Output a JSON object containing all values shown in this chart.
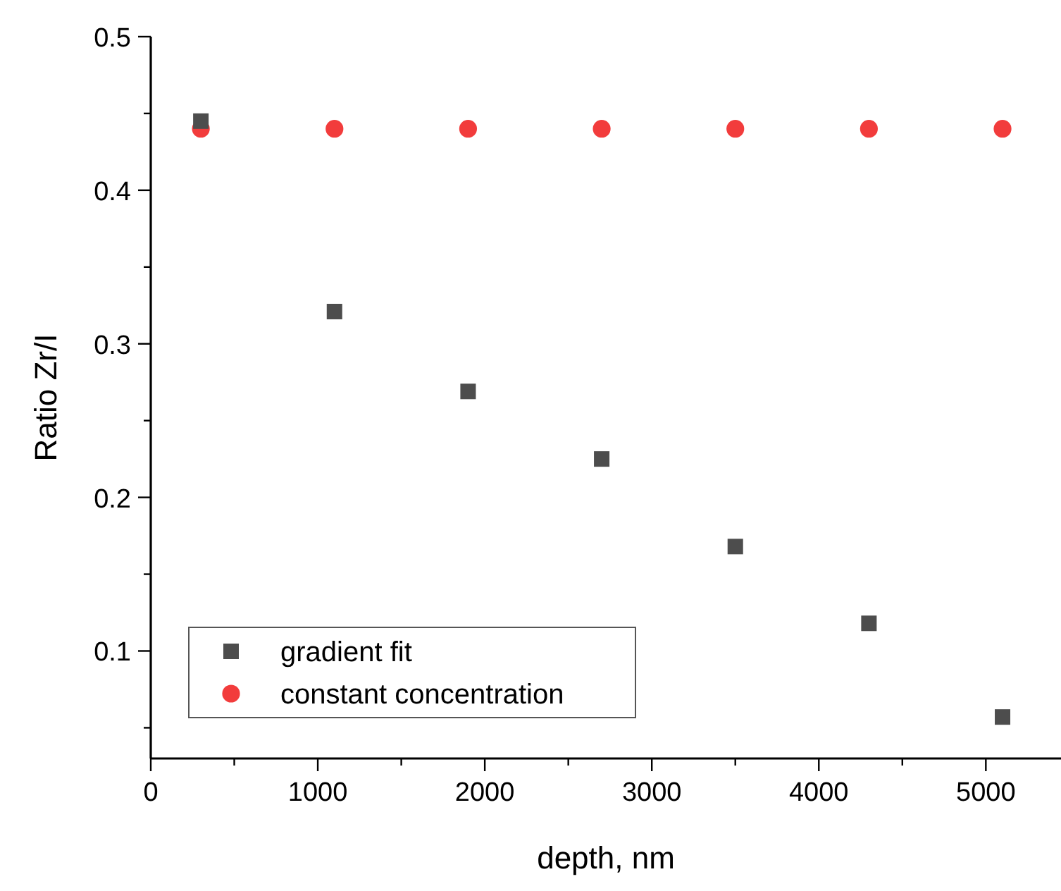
{
  "chart_data": {
    "type": "scatter",
    "xlabel": "depth, nm",
    "ylabel": "Ratio Zr/I",
    "x": [
      300,
      1100,
      1900,
      2700,
      3500,
      4300,
      5100
    ],
    "series": [
      {
        "name": "gradient fit",
        "color": "#4d4d4d",
        "marker": "square",
        "values": [
          0.445,
          0.321,
          0.269,
          0.225,
          0.168,
          0.118,
          0.057
        ]
      },
      {
        "name": "constant concentration",
        "color": "#f23c3c",
        "marker": "circle",
        "values": [
          0.44,
          0.44,
          0.44,
          0.44,
          0.44,
          0.44,
          0.44
        ]
      }
    ],
    "xlim": [
      0,
      5450
    ],
    "ylim": [
      0.03,
      0.5
    ],
    "xticks": [
      0,
      {
        "value": 500,
        "label": null
      },
      1000,
      {
        "value": 1500,
        "label": null
      },
      2000,
      {
        "value": 2500,
        "label": null
      },
      3000,
      {
        "value": 3500,
        "label": null
      },
      4000,
      {
        "value": 4500,
        "label": null
      },
      5000
    ],
    "yticks": [
      {
        "value": 0.05,
        "label": null
      },
      0.1,
      {
        "value": 0.15,
        "label": null
      },
      0.2,
      {
        "value": 0.25,
        "label": null
      },
      0.3,
      {
        "value": 0.35,
        "label": null
      },
      0.4,
      {
        "value": 0.45,
        "label": null
      },
      0.5
    ],
    "legend": "bottom left",
    "grid": false
  }
}
